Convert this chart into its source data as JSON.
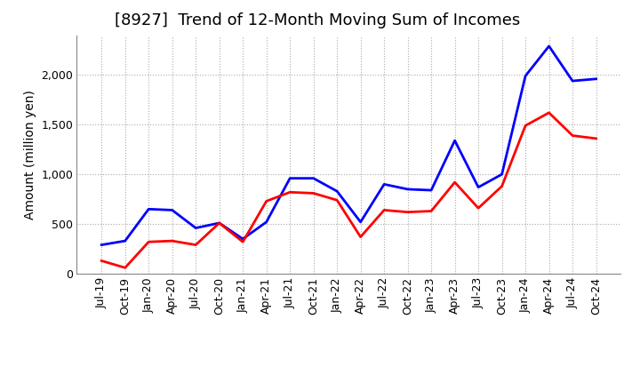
{
  "title": "[8927]  Trend of 12-Month Moving Sum of Incomes",
  "ylabel": "Amount (million yen)",
  "x_labels": [
    "Jul-19",
    "Oct-19",
    "Jan-20",
    "Apr-20",
    "Jul-20",
    "Oct-20",
    "Jan-21",
    "Apr-21",
    "Jul-21",
    "Oct-21",
    "Jan-22",
    "Apr-22",
    "Jul-22",
    "Oct-22",
    "Jan-23",
    "Apr-23",
    "Jul-23",
    "Oct-23",
    "Jan-24",
    "Apr-24",
    "Jul-24",
    "Oct-24"
  ],
  "ordinary_income": [
    290,
    330,
    650,
    640,
    460,
    510,
    350,
    520,
    960,
    960,
    830,
    520,
    900,
    850,
    840,
    1340,
    870,
    1000,
    1990,
    2290,
    1940,
    1960
  ],
  "net_income": [
    130,
    60,
    320,
    330,
    290,
    510,
    320,
    730,
    820,
    810,
    740,
    370,
    640,
    620,
    630,
    920,
    660,
    880,
    1490,
    1620,
    1390,
    1360
  ],
  "ordinary_color": "#0000FF",
  "net_color": "#FF0000",
  "ylim": [
    0,
    2400
  ],
  "yticks": [
    0,
    500,
    1000,
    1500,
    2000
  ],
  "background_color": "#FFFFFF",
  "plot_bg_color": "#FFFFFF",
  "grid_color": "#AAAAAA",
  "title_fontsize": 13,
  "label_fontsize": 10,
  "tick_fontsize": 9,
  "legend_fontsize": 10,
  "line_width": 2.0
}
